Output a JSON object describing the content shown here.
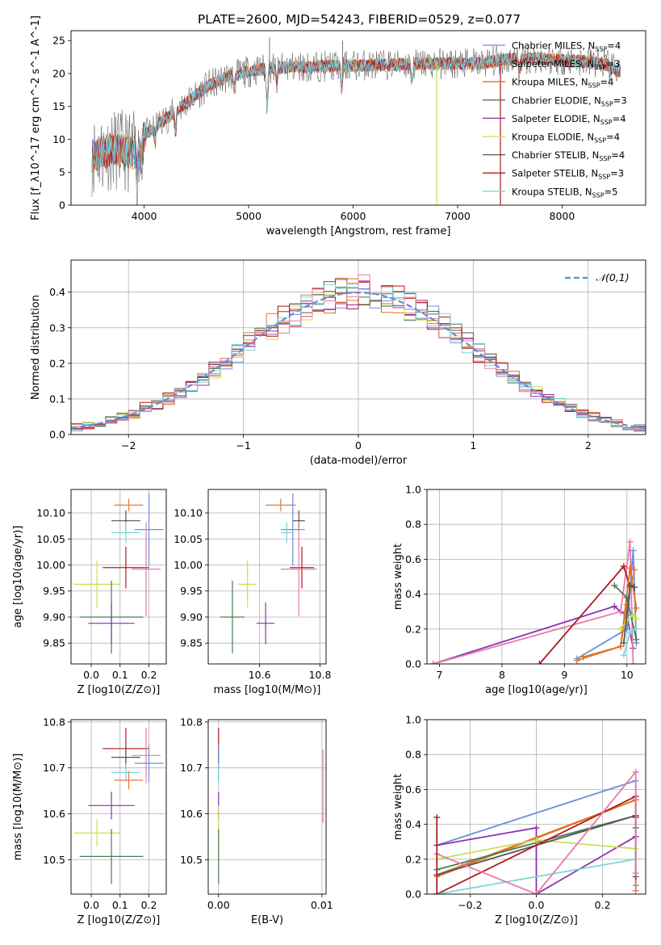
{
  "title": "PLATE=2600, MJD=54243, FIBERID=0529, z=0.077",
  "colors": {
    "Chabrier MILES": "#6a8fd8",
    "Salpeter MILES": "#e07a3e",
    "Kroupa MILES": "#e07020",
    "Chabrier ELODIE": "#4e7a55",
    "Salpeter ELODIE": "#8e2fb0",
    "Kroupa ELODIE": "#c8e050",
    "Chabrier STELIB": "#555555",
    "Salpeter STELIB": "#b01a1a",
    "Kroupa STELIB": "#78d8d8",
    "normal_curve": "#5b8fdd",
    "extra_pink": "#e87aa8"
  },
  "chart_data": [
    {
      "id": "spectrum",
      "type": "line",
      "xlabel": "wavelength [Angstrom, rest frame]",
      "ylabel": "Flux [f_λ10^-17 erg cm^-2 s^-1 A^-1]",
      "xlim": [
        3300,
        8800
      ],
      "ylim": [
        0,
        26.5
      ],
      "xticks": [
        4000,
        5000,
        6000,
        7000,
        8000
      ],
      "yticks": [
        0,
        5,
        10,
        15,
        20,
        25
      ],
      "legend_position": "right",
      "legend": [
        {
          "label": "Chabrier MILES, N",
          "sub": "SSP",
          "count": "=4",
          "color_key": "Chabrier MILES"
        },
        {
          "label": "Salpeter MILES, N",
          "sub": "SSP",
          "count": "=3",
          "color_key": "Salpeter MILES"
        },
        {
          "label": "Kroupa MILES, N",
          "sub": "SSP",
          "count": "=4",
          "color_key": "Kroupa MILES"
        },
        {
          "label": "Chabrier ELODIE, N",
          "sub": "SSP",
          "count": "=3",
          "color_key": "Chabrier ELODIE"
        },
        {
          "label": "Salpeter ELODIE, N",
          "sub": "SSP",
          "count": "=4",
          "color_key": "Salpeter ELODIE"
        },
        {
          "label": "Kroupa ELODIE, N",
          "sub": "SSP",
          "count": "=4",
          "color_key": "Kroupa ELODIE"
        },
        {
          "label": "Chabrier STELIB, N",
          "sub": "SSP",
          "count": "=4",
          "color_key": "Chabrier STELIB"
        },
        {
          "label": "Salpeter STELIB, N",
          "sub": "SSP",
          "count": "=3",
          "color_key": "Salpeter STELIB"
        },
        {
          "label": "Kroupa STELIB, N",
          "sub": "SSP",
          "count": "=5",
          "color_key": "Kroupa STELIB"
        }
      ],
      "continuum": [
        [
          3500,
          7.5
        ],
        [
          3700,
          8.5
        ],
        [
          3900,
          8.0
        ],
        [
          4000,
          10.5
        ],
        [
          4100,
          12.0
        ],
        [
          4200,
          13.0
        ],
        [
          4400,
          15.5
        ],
        [
          4600,
          18.0
        ],
        [
          4800,
          19.5
        ],
        [
          5000,
          20.3
        ],
        [
          5200,
          20.8
        ],
        [
          5400,
          21.0
        ],
        [
          5600,
          21.0
        ],
        [
          5800,
          21.2
        ],
        [
          6000,
          21.2
        ],
        [
          6200,
          21.3
        ],
        [
          6400,
          21.3
        ],
        [
          6600,
          21.5
        ],
        [
          6800,
          21.5
        ],
        [
          7000,
          21.5
        ],
        [
          7200,
          21.5
        ],
        [
          7400,
          22.0
        ],
        [
          7600,
          22.3
        ],
        [
          7800,
          22.2
        ],
        [
          8000,
          22.0
        ],
        [
          8200,
          21.8
        ],
        [
          8400,
          21.5
        ],
        [
          8520,
          20.5
        ]
      ],
      "absorption_features": [
        [
          3934,
          3.5
        ],
        [
          3969,
          3.0
        ],
        [
          4102,
          2.0
        ],
        [
          4300,
          3.0
        ],
        [
          4861,
          2.0
        ],
        [
          5175,
          5.0
        ],
        [
          5270,
          2.0
        ],
        [
          5890,
          3.5
        ],
        [
          6563,
          2.5
        ],
        [
          7590,
          2.0
        ]
      ],
      "emission_spikes": [
        [
          5200,
          25.5
        ],
        [
          5900,
          25.0
        ],
        [
          7800,
          23.5
        ]
      ],
      "model_dropouts": [
        {
          "series": "Kroupa ELODIE",
          "x": 6800,
          "y": 0
        },
        {
          "series": "Salpeter STELIB",
          "x": 7410,
          "y": 0
        },
        {
          "series": "Kroupa STELIB",
          "x": 8450,
          "y": 18.0
        }
      ]
    },
    {
      "id": "residuals",
      "type": "step-histogram",
      "xlabel": "(data-model)/error",
      "ylabel": "Normed distribution",
      "xlim": [
        -2.5,
        2.5
      ],
      "ylim": [
        0,
        0.49
      ],
      "xticks": [
        -2,
        -1,
        0,
        1,
        2
      ],
      "yticks": [
        0.0,
        0.1,
        0.2,
        0.3,
        0.4
      ],
      "legend_label": "𝒩(0,1)",
      "legend_position": "top-right",
      "bin_width": 0.1,
      "normal": {
        "mean": 0,
        "sigma": 1
      },
      "series_offsets": [
        0.0,
        0.012,
        -0.01,
        0.02,
        -0.018,
        0.008,
        -0.006,
        0.015,
        -0.012,
        0.005
      ]
    },
    {
      "id": "age-vs-Z",
      "type": "errorbar",
      "xlabel": "Z [log10(Z/Z⊙)]",
      "ylabel": "age [log10(age/yr)]",
      "xlim": [
        -0.07,
        0.26
      ],
      "ylim": [
        9.81,
        10.145
      ],
      "xticks": [
        0.0,
        0.1,
        0.2
      ],
      "yticks": [
        9.85,
        9.9,
        9.95,
        10.0,
        10.05,
        10.1
      ],
      "points": [
        {
          "series": "Salpeter MILES",
          "x": 0.13,
          "y": 10.115,
          "xerr": 0.05,
          "yerr": 0.012
        },
        {
          "series": "Chabrier STELIB",
          "x": 0.12,
          "y": 10.085,
          "xerr": 0.05,
          "yerr": 0.02
        },
        {
          "series": "Chabrier MILES",
          "x": 0.2,
          "y": 10.068,
          "xerr": 0.05,
          "yerr": 0.07
        },
        {
          "series": "Kroupa STELIB",
          "x": 0.12,
          "y": 10.062,
          "xerr": 0.05,
          "yerr": 0.02
        },
        {
          "series": "Salpeter STELIB",
          "x": 0.12,
          "y": 9.995,
          "xerr": 0.08,
          "yerr": 0.04
        },
        {
          "series": "Extra pink",
          "x": 0.19,
          "y": 9.992,
          "xerr": 0.05,
          "yerr": 0.09
        },
        {
          "series": "Kroupa ELODIE",
          "x": 0.02,
          "y": 9.963,
          "xerr": 0.08,
          "yerr": 0.045
        },
        {
          "series": "Chabrier ELODIE",
          "x": 0.07,
          "y": 9.9,
          "xerr": 0.11,
          "yerr": 0.07
        },
        {
          "series": "Salpeter ELODIE",
          "x": 0.07,
          "y": 9.888,
          "xerr": 0.08,
          "yerr": 0.04
        }
      ]
    },
    {
      "id": "age-vs-mass",
      "type": "errorbar",
      "xlabel": "mass [log10(M/M⊙)]",
      "ylabel": "",
      "xlim": [
        10.43,
        10.82
      ],
      "ylim": [
        9.81,
        10.145
      ],
      "xticks": [
        10.6,
        10.8
      ],
      "yticks": [
        9.85,
        9.9,
        9.95,
        10.0,
        10.05,
        10.1
      ],
      "points": [
        {
          "series": "Salpeter MILES",
          "x": 10.67,
          "y": 10.115,
          "xerr": 0.05,
          "yerr": 0.012
        },
        {
          "series": "Chabrier STELIB",
          "x": 10.73,
          "y": 10.085,
          "xerr": 0.02,
          "yerr": 0.02
        },
        {
          "series": "Chabrier MILES",
          "x": 10.71,
          "y": 10.068,
          "xerr": 0.04,
          "yerr": 0.07
        },
        {
          "series": "Kroupa STELIB",
          "x": 10.69,
          "y": 10.062,
          "xerr": 0.02,
          "yerr": 0.02
        },
        {
          "series": "Salpeter STELIB",
          "x": 10.74,
          "y": 9.995,
          "xerr": 0.04,
          "yerr": 0.04
        },
        {
          "series": "Extra pink",
          "x": 10.73,
          "y": 9.992,
          "xerr": 0.06,
          "yerr": 0.09
        },
        {
          "series": "Kroupa ELODIE",
          "x": 10.56,
          "y": 9.963,
          "xerr": 0.03,
          "yerr": 0.045
        },
        {
          "series": "Chabrier ELODIE",
          "x": 10.51,
          "y": 9.9,
          "xerr": 0.04,
          "yerr": 0.07
        },
        {
          "series": "Salpeter ELODIE",
          "x": 10.62,
          "y": 9.888,
          "xerr": 0.03,
          "yerr": 0.04
        }
      ]
    },
    {
      "id": "massweight-vs-age",
      "type": "line",
      "xlabel": "age [log10(age/yr)]",
      "ylabel": "mass weight",
      "xlim": [
        6.8,
        10.3
      ],
      "ylim": [
        0,
        1.0
      ],
      "xticks": [
        7,
        8,
        9,
        10
      ],
      "yticks": [
        0.0,
        0.2,
        0.4,
        0.6,
        0.8,
        1.0
      ],
      "series": [
        {
          "name": "Salpeter ELODIE",
          "points": [
            [
              6.9,
              0.0
            ],
            [
              9.8,
              0.33
            ],
            [
              9.9,
              0.3
            ],
            [
              10.0,
              0.28
            ],
            [
              10.1,
              0.09
            ]
          ]
        },
        {
          "name": "Extra pink",
          "points": [
            [
              6.9,
              0.0
            ],
            [
              9.9,
              0.3
            ],
            [
              10.05,
              0.7
            ],
            [
              10.1,
              0.0
            ]
          ]
        },
        {
          "name": "Salpeter STELIB",
          "points": [
            [
              8.6,
              0.0
            ],
            [
              9.95,
              0.56
            ],
            [
              10.05,
              0.44
            ]
          ]
        },
        {
          "name": "Chabrier MILES",
          "points": [
            [
              9.2,
              0.03
            ],
            [
              10.0,
              0.2
            ],
            [
              10.1,
              0.65
            ],
            [
              10.15,
              0.12
            ]
          ]
        },
        {
          "name": "Salpeter MILES",
          "points": [
            [
              9.2,
              0.02
            ],
            [
              9.9,
              0.1
            ],
            [
              10.0,
              0.34
            ],
            [
              10.12,
              0.54
            ]
          ]
        },
        {
          "name": "Kroupa MILES",
          "points": [
            [
              9.3,
              0.04
            ],
            [
              9.9,
              0.1
            ],
            [
              10.05,
              0.55
            ],
            [
              10.15,
              0.32
            ]
          ]
        },
        {
          "name": "Chabrier ELODIE",
          "points": [
            [
              9.8,
              0.45
            ],
            [
              10.0,
              0.38
            ],
            [
              10.15,
              0.14
            ]
          ]
        },
        {
          "name": "Kroupa ELODIE",
          "points": [
            [
              9.9,
              0.2
            ],
            [
              10.0,
              0.25
            ],
            [
              10.1,
              0.28
            ],
            [
              10.15,
              0.26
            ]
          ]
        },
        {
          "name": "Chabrier STELIB",
          "points": [
            [
              9.95,
              0.12
            ],
            [
              10.05,
              0.45
            ],
            [
              10.12,
              0.44
            ]
          ]
        },
        {
          "name": "Kroupa STELIB",
          "points": [
            [
              9.95,
              0.05
            ],
            [
              10.05,
              0.18
            ],
            [
              10.15,
              0.2
            ]
          ]
        }
      ]
    },
    {
      "id": "mass-vs-Z",
      "type": "errorbar",
      "xlabel": "Z [log10(Z/Z⊙)]",
      "ylabel": "mass [log10(M/M⊙)]",
      "xlim": [
        -0.07,
        0.26
      ],
      "ylim": [
        10.425,
        10.805
      ],
      "xticks": [
        0.0,
        0.1,
        0.2
      ],
      "yticks": [
        10.5,
        10.6,
        10.7,
        10.8
      ],
      "points": [
        {
          "series": "Salpeter STELIB",
          "x": 0.12,
          "y": 10.742,
          "xerr": 0.08,
          "yerr": 0.045
        },
        {
          "series": "Extra pink",
          "x": 0.19,
          "y": 10.727,
          "xerr": 0.05,
          "yerr": 0.06
        },
        {
          "series": "Chabrier STELIB",
          "x": 0.12,
          "y": 10.723,
          "xerr": 0.05,
          "yerr": 0.02
        },
        {
          "series": "Chabrier MILES",
          "x": 0.2,
          "y": 10.71,
          "xerr": 0.05,
          "yerr": 0.04
        },
        {
          "series": "Kroupa STELIB",
          "x": 0.12,
          "y": 10.69,
          "xerr": 0.05,
          "yerr": 0.02
        },
        {
          "series": "Salpeter MILES",
          "x": 0.13,
          "y": 10.673,
          "xerr": 0.05,
          "yerr": 0.02
        },
        {
          "series": "Salpeter ELODIE",
          "x": 0.07,
          "y": 10.618,
          "xerr": 0.08,
          "yerr": 0.03
        },
        {
          "series": "Kroupa ELODIE",
          "x": 0.02,
          "y": 10.558,
          "xerr": 0.08,
          "yerr": 0.03
        },
        {
          "series": "Chabrier ELODIE",
          "x": 0.07,
          "y": 10.507,
          "xerr": 0.11,
          "yerr": 0.06
        }
      ]
    },
    {
      "id": "mass-vs-ebv",
      "type": "errorbar",
      "xlabel": "E(B-V)",
      "ylabel": "",
      "xlim": [
        -0.001,
        0.0104
      ],
      "ylim": [
        10.425,
        10.805
      ],
      "xticks": [
        0.0,
        0.01
      ],
      "yticks": [
        10.5,
        10.6,
        10.7,
        10.8
      ],
      "points": [
        {
          "series": "Salpeter STELIB",
          "x": 0.0,
          "y": 10.742,
          "xerr": 0.0,
          "yerr": 0.045
        },
        {
          "series": "Extra pink",
          "x": 0.0101,
          "y": 10.66,
          "xerr": 0.0,
          "yerr": 0.08
        },
        {
          "series": "Chabrier MILES",
          "x": 0.0,
          "y": 10.71,
          "xerr": 0.0,
          "yerr": 0.04
        },
        {
          "series": "Kroupa STELIB",
          "x": 0.0,
          "y": 10.69,
          "xerr": 0.0,
          "yerr": 0.02
        },
        {
          "series": "Salpeter ELODIE",
          "x": 0.0,
          "y": 10.618,
          "xerr": 0.0,
          "yerr": 0.03
        },
        {
          "series": "Kroupa ELODIE",
          "x": 0.0,
          "y": 10.558,
          "xerr": 0.0,
          "yerr": 0.06
        },
        {
          "series": "Chabrier ELODIE",
          "x": 0.0,
          "y": 10.507,
          "xerr": 0.0,
          "yerr": 0.06
        }
      ]
    },
    {
      "id": "massweight-vs-Z",
      "type": "line",
      "xlabel": "Z [log10(Z/Z⊙)]",
      "ylabel": "mass weight",
      "xlim": [
        -0.33,
        0.33
      ],
      "ylim": [
        0,
        1.0
      ],
      "xticks": [
        -0.2,
        0.0,
        0.2
      ],
      "yticks": [
        0.0,
        0.2,
        0.4,
        0.6,
        0.8,
        1.0
      ],
      "series": [
        {
          "name": "Chabrier MILES",
          "points": [
            [
              -0.3,
              0.28
            ],
            [
              0.3,
              0.65
            ],
            [
              0.3,
              0.05
            ]
          ]
        },
        {
          "name": "Salpeter MILES",
          "points": [
            [
              -0.3,
              0.1
            ],
            [
              0.3,
              0.54
            ],
            [
              0.3,
              0.02
            ]
          ]
        },
        {
          "name": "Kroupa MILES",
          "points": [
            [
              -0.3,
              0.11
            ],
            [
              0.3,
              0.54
            ]
          ]
        },
        {
          "name": "Chabrier ELODIE",
          "points": [
            [
              -0.3,
              0.14
            ],
            [
              0.3,
              0.45
            ],
            [
              0.3,
              0.38
            ]
          ]
        },
        {
          "name": "Salpeter ELODIE",
          "points": [
            [
              -0.3,
              0.28
            ],
            [
              0.0,
              0.38
            ],
            [
              0.0,
              0.0
            ],
            [
              0.3,
              0.33
            ]
          ]
        },
        {
          "name": "Kroupa ELODIE",
          "points": [
            [
              -0.3,
              0.2
            ],
            [
              0.0,
              0.31
            ],
            [
              0.3,
              0.26
            ]
          ]
        },
        {
          "name": "Chabrier STELIB",
          "points": [
            [
              -0.3,
              0.11
            ],
            [
              0.3,
              0.45
            ],
            [
              0.3,
              0.1
            ]
          ]
        },
        {
          "name": "Salpeter STELIB",
          "points": [
            [
              -0.3,
              0.0
            ],
            [
              0.3,
              0.56
            ],
            [
              0.3,
              0.44
            ]
          ]
        },
        {
          "name": "Kroupa STELIB",
          "points": [
            [
              -0.3,
              0.0
            ],
            [
              0.3,
              0.2
            ]
          ]
        },
        {
          "name": "Extra pink",
          "points": [
            [
              -0.3,
              0.23
            ],
            [
              0.0,
              0.0
            ],
            [
              0.3,
              0.7
            ],
            [
              0.3,
              0.12
            ]
          ]
        },
        {
          "name": "Salpeter STELIB",
          "points": [
            [
              -0.3,
              0.44
            ],
            [
              -0.3,
              0.0
            ]
          ]
        }
      ]
    }
  ]
}
